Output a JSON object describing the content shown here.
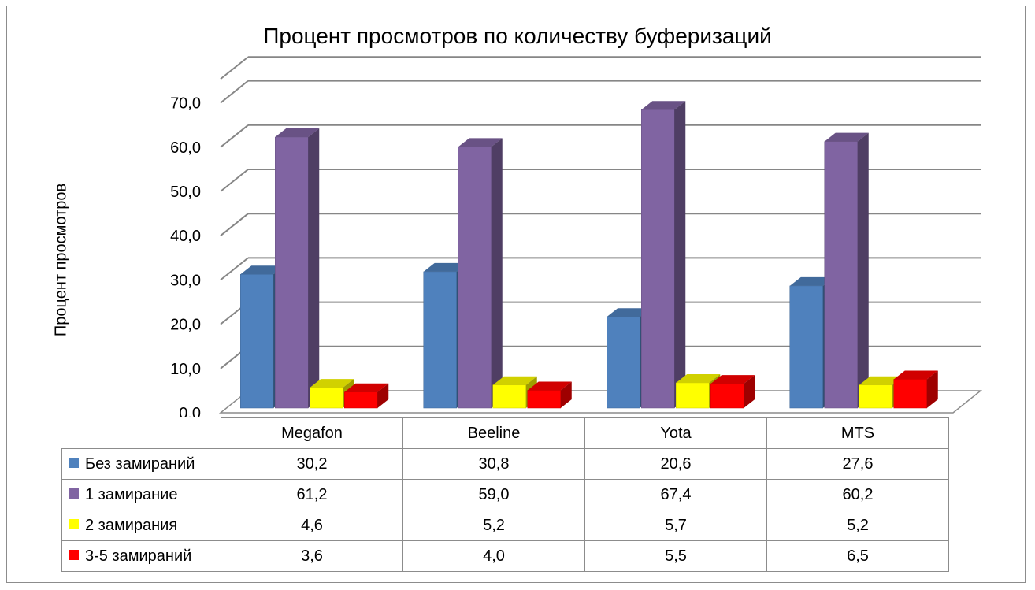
{
  "chart_data": {
    "type": "bar",
    "title": "Процент просмотров по количеству буферизаций",
    "ylabel": "Процент просмотров",
    "xlabel": "",
    "categories": [
      "Megafon",
      "Beeline",
      "Yota",
      "MTS"
    ],
    "ylim": [
      0,
      70
    ],
    "y_ticks": [
      "0,0",
      "10,0",
      "20,0",
      "30,0",
      "40,0",
      "50,0",
      "60,0",
      "70,0"
    ],
    "grid": true,
    "style": "3d clustered columns with data table below",
    "series": [
      {
        "name": "Без замираний",
        "color": "#4f81bd",
        "values": [
          30.2,
          30.8,
          20.6,
          27.6
        ],
        "labels": [
          "30,2",
          "30,8",
          "20,6",
          "27,6"
        ]
      },
      {
        "name": "1 замирание",
        "color": "#8064a2",
        "values": [
          61.2,
          59.0,
          67.4,
          60.2
        ],
        "labels": [
          "61,2",
          "59,0",
          "67,4",
          "60,2"
        ]
      },
      {
        "name": "2 замирания",
        "color": "#ffff00",
        "values": [
          4.6,
          5.2,
          5.7,
          5.2
        ],
        "labels": [
          "4,6",
          "5,2",
          "5,7",
          "5,2"
        ]
      },
      {
        "name": "3-5 замираний",
        "color": "#ff0000",
        "values": [
          3.6,
          4.0,
          5.5,
          6.5
        ],
        "labels": [
          "3,6",
          "4,0",
          "5,5",
          "6,5"
        ]
      }
    ]
  }
}
